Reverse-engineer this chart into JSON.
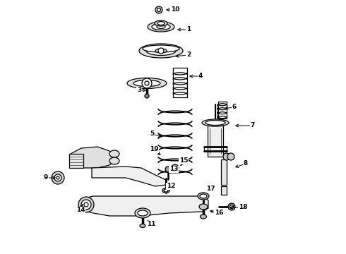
{
  "bg_color": "#ffffff",
  "line_color": "#000000",
  "figsize": [
    4.9,
    3.6
  ],
  "dpi": 100,
  "labels": [
    [
      "10",
      248,
      14,
      232,
      14,
      "left"
    ],
    [
      "1",
      267,
      42,
      248,
      42,
      "left"
    ],
    [
      "2",
      267,
      78,
      245,
      80,
      "left"
    ],
    [
      "3",
      197,
      128,
      210,
      128,
      "right"
    ],
    [
      "4",
      284,
      108,
      265,
      108,
      "left"
    ],
    [
      "6",
      332,
      152,
      315,
      154,
      "left"
    ],
    [
      "5",
      215,
      190,
      232,
      194,
      "right"
    ],
    [
      "7",
      358,
      178,
      330,
      178,
      "left"
    ],
    [
      "8",
      348,
      232,
      330,
      238,
      "left"
    ],
    [
      "19",
      218,
      212,
      230,
      222,
      "right"
    ],
    [
      "9",
      65,
      252,
      82,
      252,
      "right"
    ],
    [
      "13",
      246,
      240,
      238,
      248,
      "left"
    ],
    [
      "15",
      260,
      228,
      254,
      238,
      "left"
    ],
    [
      "12",
      242,
      264,
      238,
      258,
      "left"
    ],
    [
      "14",
      114,
      298,
      118,
      286,
      "right"
    ],
    [
      "11",
      214,
      318,
      206,
      310,
      "left"
    ],
    [
      "17",
      298,
      268,
      290,
      274,
      "left"
    ],
    [
      "16",
      310,
      302,
      294,
      298,
      "left"
    ],
    [
      "18",
      344,
      294,
      322,
      294,
      "left"
    ]
  ]
}
